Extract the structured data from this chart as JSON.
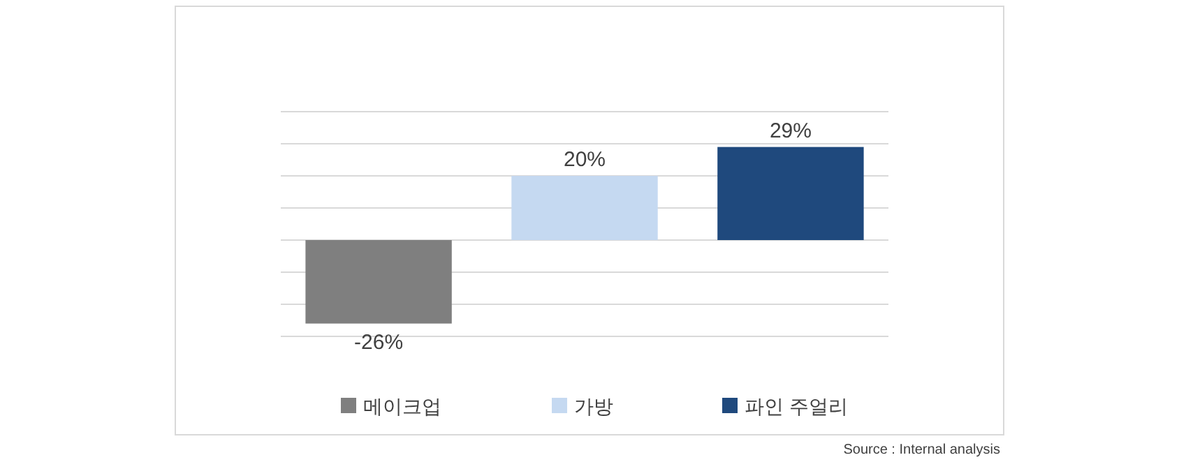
{
  "chart_data": {
    "type": "bar",
    "categories": [
      null
    ],
    "series": [
      {
        "name": "메이크업",
        "color": "#7f7f7f",
        "values": [
          -26
        ],
        "value_labels": [
          "-26%"
        ]
      },
      {
        "name": "가방",
        "color": "#c5d9f1",
        "values": [
          20
        ],
        "value_labels": [
          "20%"
        ]
      },
      {
        "name": "파인 주얼리",
        "color": "#1f497d",
        "values": [
          29
        ],
        "value_labels": [
          "29%"
        ]
      }
    ],
    "ylim": [
      -30,
      40
    ],
    "yticks": [
      {
        "value": -30,
        "label": null
      },
      {
        "value": -20,
        "label": null
      },
      {
        "value": -10,
        "label": null
      },
      {
        "value": 0,
        "label": null
      },
      {
        "value": 10,
        "label": null
      },
      {
        "value": 20,
        "label": null
      },
      {
        "value": 30,
        "label": null
      },
      {
        "value": 40,
        "label": null
      }
    ],
    "grid": "y",
    "legend": "bottom",
    "annotations": [
      "Source : Internal analysis"
    ]
  }
}
